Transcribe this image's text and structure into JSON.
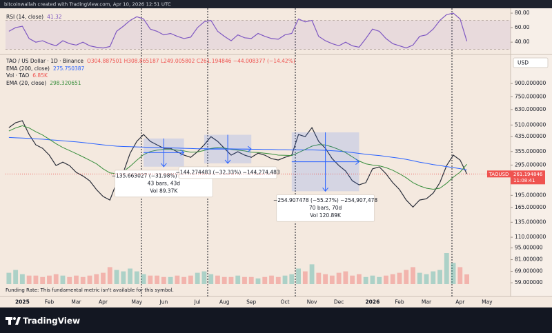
{
  "header": "bitcoinwallah created with TradingView.com, Apr 10, 2026 12:51 UTC",
  "footer_note": "Funding Rate: This fundamental metric isn't available for this symbol.",
  "brand": "TradingView",
  "chart_data": [
    {
      "type": "line",
      "log": true,
      "currency": "USD",
      "categories": [
        null,
        null,
        "2025",
        null,
        null,
        null,
        "Feb",
        null,
        null,
        null,
        "Mar",
        null,
        null,
        null,
        "Apr",
        null,
        null,
        null,
        null,
        "May",
        null,
        null,
        null,
        "Jun",
        null,
        null,
        null,
        null,
        "Jul",
        null,
        null,
        null,
        "Aug",
        null,
        null,
        null,
        "Sep",
        null,
        null,
        null,
        null,
        "Oct",
        null,
        null,
        null,
        "Nov",
        null,
        null,
        null,
        "Dec",
        null,
        null,
        null,
        null,
        "2026",
        null,
        null,
        null,
        "Feb",
        null,
        null,
        null,
        "Mar",
        null,
        null,
        null,
        null,
        "Apr",
        null,
        null,
        null,
        "May",
        null,
        null,
        null
      ],
      "ylim": [
        58,
        1325
      ],
      "yticks": [
        {
          "value": 900,
          "label": "900.000000"
        },
        {
          "value": 750,
          "label": "750.000000"
        },
        {
          "value": 630,
          "label": "630.000000"
        },
        {
          "value": 510,
          "label": "510.000000"
        },
        {
          "value": 435,
          "label": "435.000000"
        },
        {
          "value": 355,
          "label": "355.000000"
        },
        {
          "value": 295,
          "label": "295.000000"
        },
        {
          "value": 195,
          "label": "195.000000"
        },
        {
          "value": 165,
          "label": "165.000000"
        },
        {
          "value": 135,
          "label": "135.000000"
        },
        {
          "value": 110,
          "label": "110.000000"
        },
        {
          "value": 95,
          "label": "95.000000"
        },
        {
          "value": 81,
          "label": "81.000000"
        },
        {
          "value": 69,
          "label": "69.000000"
        },
        {
          "value": 59,
          "label": "59.000000"
        }
      ],
      "series": [
        {
          "name": "TAO / US Dollar · 1D · Binance",
          "ohlc": "O304.887501 H308.865187 L249.005802 C261.194846 −44.008377 (−14.42%)",
          "color": "#2a2e39",
          "values": [
            492,
            526,
            541,
            448,
            389,
            371,
            338,
            293,
            307,
            293,
            267,
            254,
            238,
            211,
            192,
            183,
            232,
            267,
            347,
            408,
            448,
            408,
            389,
            371,
            371,
            354,
            338,
            328,
            354,
            389,
            435,
            408,
            371,
            338,
            354,
            338,
            328,
            347,
            338,
            322,
            316,
            328,
            338,
            448,
            435,
            492,
            408,
            371,
            322,
            293,
            272,
            238,
            225,
            232,
            280,
            288,
            262,
            232,
            211,
            183,
            166,
            183,
            186,
            201,
            232,
            293,
            338,
            316,
            261.194846,
            null,
            null,
            null,
            null,
            null,
            null
          ]
        },
        {
          "name": "EMA (200, close)",
          "color": "#2962ff",
          "values": [
            430,
            428,
            427,
            425,
            422,
            420,
            417,
            414,
            411,
            408,
            405,
            401,
            397,
            393,
            389,
            385,
            382,
            380,
            379,
            378,
            377,
            376,
            375,
            374,
            373,
            372,
            371,
            370,
            369,
            369,
            369,
            369,
            368,
            368,
            367,
            367,
            366,
            366,
            365,
            365,
            364,
            364,
            363,
            363,
            363,
            363,
            362,
            361,
            359,
            357,
            354,
            350,
            346,
            342,
            339,
            336,
            332,
            328,
            324,
            319,
            313,
            307,
            302,
            297,
            293,
            289,
            285,
            281,
            275.750387,
            null,
            null,
            null,
            null,
            null,
            null
          ]
        },
        {
          "name": "Vol · TAO",
          "kind": "volume",
          "legend_value": "6.85K",
          "color": "#26a69a",
          "down_color": "#ef5350",
          "values": [
            8,
            10,
            7,
            6,
            6,
            5,
            6,
            7,
            6,
            5,
            6,
            5,
            6,
            7,
            8,
            12,
            10,
            9,
            11,
            9,
            7,
            6,
            6,
            5,
            5,
            6,
            5,
            6,
            8,
            9,
            7,
            6,
            5,
            5,
            6,
            5,
            5,
            4,
            5,
            6,
            5,
            6,
            7,
            11,
            9,
            14,
            8,
            7,
            6,
            8,
            9,
            6,
            7,
            5,
            6,
            5,
            6,
            7,
            8,
            10,
            12,
            8,
            7,
            9,
            10,
            22,
            15,
            12,
            6.85,
            null,
            null,
            null,
            null,
            null,
            null
          ]
        },
        {
          "name": "EMA (20, close)",
          "color": "#388e3c",
          "values": [
            470,
            490,
            505,
            490,
            465,
            445,
            420,
            395,
            375,
            360,
            345,
            330,
            315,
            300,
            280,
            265,
            262,
            270,
            290,
            315,
            340,
            355,
            362,
            365,
            365,
            362,
            358,
            352,
            353,
            360,
            370,
            375,
            372,
            365,
            362,
            358,
            352,
            350,
            347,
            343,
            338,
            337,
            336,
            350,
            365,
            382,
            390,
            388,
            378,
            365,
            350,
            330,
            312,
            300,
            295,
            292,
            285,
            275,
            262,
            248,
            232,
            222,
            215,
            212,
            215,
            230,
            250,
            268,
            298.320651,
            null,
            null,
            null,
            null,
            null,
            null
          ]
        }
      ],
      "price_tag": {
        "symbol": "TAOUSD",
        "countdown": "11:08:41",
        "color": "#ef5350"
      },
      "measures": [
        {
          "start": 20,
          "end": 26,
          "from": 424.2,
          "to": 288.5,
          "lines": [
            "−135.663027 (−31.98%) −135,663,027",
            "43 bars, 43d",
            "Vol 89.37K"
          ]
        },
        {
          "start": 29,
          "end": 36,
          "from": 446.3,
          "to": 302.0,
          "lines": [
            "−144.274483 (−32.33%) −144,274,483"
          ]
        },
        {
          "start": 42,
          "end": 52,
          "from": 461.2,
          "to": 206.3,
          "lines": [
            "−254.907478 (−55.27%) −254,907,478",
            "70 bars, 70d",
            "Vol 120.89K"
          ]
        }
      ]
    },
    {
      "type": "line",
      "ylim": [
        24,
        86.7
      ],
      "yticks": [
        {
          "value": 80,
          "label": "80.00"
        },
        {
          "value": 60,
          "label": "60.00"
        },
        {
          "value": 40,
          "label": "40.00"
        }
      ],
      "band": [
        30,
        70
      ],
      "band_color": "#7e57c2",
      "series": [
        {
          "name": "RSI (14, close)",
          "color": "#7e57c2",
          "values": [
            55,
            60,
            62,
            45,
            40,
            42,
            38,
            35,
            42,
            38,
            36,
            40,
            35,
            33,
            32,
            34,
            55,
            62,
            70,
            75,
            72,
            58,
            55,
            50,
            52,
            48,
            45,
            47,
            60,
            68,
            70,
            55,
            48,
            42,
            50,
            46,
            45,
            52,
            48,
            45,
            44,
            50,
            52,
            72,
            68,
            70,
            48,
            42,
            38,
            35,
            40,
            35,
            33,
            45,
            58,
            55,
            45,
            38,
            35,
            32,
            36,
            48,
            50,
            58,
            70,
            78,
            80,
            72,
            41.32,
            null,
            null,
            null,
            null,
            null,
            null
          ]
        }
      ]
    }
  ]
}
